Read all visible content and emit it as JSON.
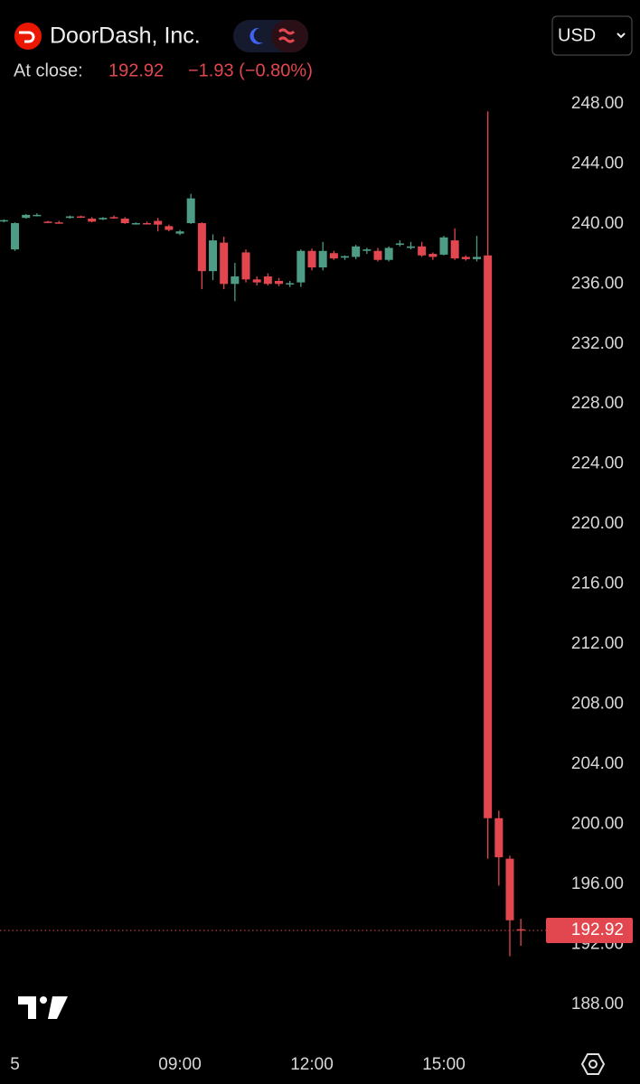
{
  "header": {
    "company": "DoorDash, Inc.",
    "at_close_label": "At close:",
    "change": "−1.93 (−0.80%)",
    "currency": "USD"
  },
  "chart_data": {
    "type": "candlestick",
    "x": [
      5,
      5.25,
      5.5,
      5.75,
      6,
      6.25,
      6.5,
      6.75,
      7,
      7.25,
      7.5,
      7.75,
      8,
      8.25,
      8.5,
      8.75,
      9,
      9.25,
      9.5,
      9.75,
      10,
      10.25,
      10.5,
      10.75,
      11,
      11.25,
      11.5,
      11.75,
      12,
      12.25,
      12.5,
      12.75,
      13,
      13.25,
      13.5,
      13.75,
      14,
      14.25,
      14.5,
      14.75,
      15,
      15.25,
      15.5,
      15.75,
      16,
      16.25,
      16.5,
      16.75
    ],
    "open": [
      240.2,
      238.3,
      240.4,
      240.55,
      240.15,
      240.1,
      240.4,
      240.5,
      240.35,
      240.3,
      240.45,
      240.35,
      240.0,
      240.05,
      240.2,
      239.85,
      239.35,
      240.05,
      240.05,
      236.85,
      238.75,
      236.0,
      238.1,
      236.3,
      236.5,
      236.2,
      236.0,
      236.1,
      238.2,
      237.1,
      238.05,
      237.75,
      237.8,
      238.2,
      238.2,
      237.6,
      238.6,
      238.4,
      238.5,
      238.0,
      237.95,
      238.9,
      237.8,
      237.65,
      237.9,
      200.4,
      197.7,
      193.0
    ],
    "high": [
      240.3,
      240.1,
      240.65,
      240.7,
      240.2,
      240.2,
      240.55,
      240.55,
      240.45,
      240.45,
      240.55,
      240.45,
      240.1,
      240.15,
      240.4,
      239.95,
      239.6,
      242.0,
      240.1,
      239.3,
      239.15,
      237.4,
      238.3,
      236.5,
      236.7,
      236.4,
      236.2,
      238.3,
      238.35,
      238.8,
      238.2,
      237.9,
      238.6,
      238.4,
      238.4,
      238.5,
      238.9,
      238.8,
      238.8,
      238.1,
      239.2,
      239.7,
      237.9,
      239.2,
      247.5,
      200.9,
      197.9,
      193.7
    ],
    "low": [
      240.1,
      238.2,
      240.35,
      240.5,
      240.05,
      240.05,
      240.35,
      240.4,
      240.1,
      240.25,
      240.35,
      240.0,
      239.95,
      240.0,
      239.5,
      239.5,
      239.25,
      240.0,
      235.65,
      236.25,
      235.65,
      234.85,
      236.1,
      235.9,
      235.9,
      235.85,
      235.8,
      235.8,
      236.9,
      236.9,
      237.6,
      237.6,
      237.65,
      238.0,
      237.5,
      237.5,
      238.5,
      238.3,
      237.8,
      237.6,
      237.9,
      237.6,
      237.55,
      237.5,
      197.7,
      195.9,
      191.2,
      191.9
    ],
    "close": [
      240.25,
      240.05,
      240.6,
      240.6,
      240.1,
      240.05,
      240.5,
      240.45,
      240.15,
      240.4,
      240.4,
      240.05,
      240.05,
      240.0,
      239.95,
      239.6,
      239.5,
      241.7,
      236.85,
      238.9,
      236.0,
      236.5,
      236.3,
      236.1,
      236.0,
      236.0,
      236.05,
      238.2,
      237.1,
      238.2,
      237.7,
      237.85,
      238.5,
      238.3,
      237.6,
      238.4,
      238.7,
      238.5,
      237.9,
      237.8,
      239.1,
      237.7,
      237.65,
      237.8,
      200.4,
      197.8,
      193.6,
      192.92
    ],
    "up_color": "#4e9c86",
    "down_color": "#e2474f",
    "xlim": [
      4.91,
      17.24
    ],
    "xticks": [
      {
        "value": 5.25,
        "label": "5"
      },
      {
        "value": 9,
        "label": "09:00"
      },
      {
        "value": 12,
        "label": "12:00"
      },
      {
        "value": 15,
        "label": "15:00"
      }
    ],
    "ylim": [
      186.3,
      249.2
    ],
    "yticks": [
      {
        "value": 188,
        "label": "188.00"
      },
      {
        "value": 192,
        "label": "192.00"
      },
      {
        "value": 196,
        "label": "196.00"
      },
      {
        "value": 200,
        "label": "200.00"
      },
      {
        "value": 204,
        "label": "204.00"
      },
      {
        "value": 208,
        "label": "208.00"
      },
      {
        "value": 212,
        "label": "212.00"
      },
      {
        "value": 216,
        "label": "216.00"
      },
      {
        "value": 220,
        "label": "220.00"
      },
      {
        "value": 224,
        "label": "224.00"
      },
      {
        "value": 228,
        "label": "228.00"
      },
      {
        "value": 232,
        "label": "232.00"
      },
      {
        "value": 236,
        "label": "236.00"
      },
      {
        "value": 240,
        "label": "240.00"
      },
      {
        "value": 244,
        "label": "244.00"
      },
      {
        "value": 248,
        "label": "248.00"
      }
    ],
    "grid": false
  }
}
